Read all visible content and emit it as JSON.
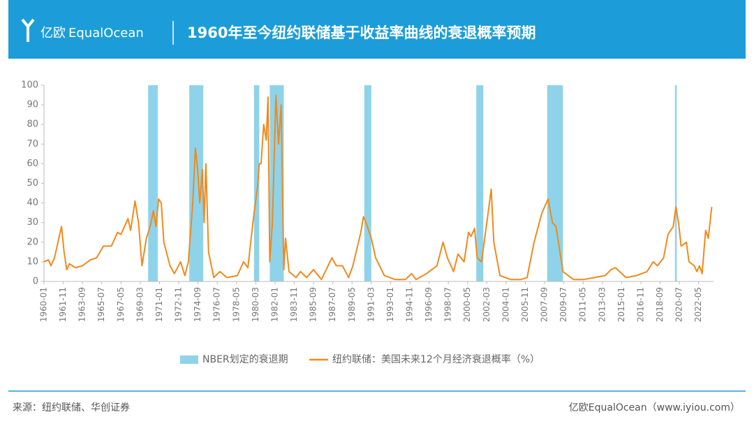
{
  "header": {
    "logo_cn": "亿欧",
    "logo_en": "EqualOcean"
  },
  "footer": {
    "source": "来源：纽约联储、华创证券",
    "credit": "亿欧EqualOcean（www.iyiou.com）"
  },
  "chart_data": {
    "type": "line",
    "title": "1960年至今纽约联储基于收益率曲线的衰退概率预期",
    "xlim": [
      "1960-01",
      "2023-10"
    ],
    "xticks": [
      "1960-01",
      "1961-11",
      "1963-09",
      "1965-07",
      "1967-05",
      "1969-03",
      "1971-01",
      "1972-11",
      "1974-09",
      "1976-07",
      "1978-05",
      "1980-03",
      "1982-01",
      "1983-11",
      "1985-09",
      "1987-07",
      "1989-05",
      "1991-03",
      "1993-01",
      "1994-11",
      "1996-09",
      "1998-07",
      "2000-05",
      "2002-03",
      "2004-01",
      "2005-11",
      "2007-09",
      "2009-07",
      "2011-05",
      "2013-03",
      "2015-01",
      "2016-11",
      "2018-09",
      "2020-07",
      "2022-05"
    ],
    "ylim": [
      0,
      100
    ],
    "yticks": [
      0,
      10,
      20,
      30,
      40,
      50,
      60,
      70,
      80,
      90,
      100
    ],
    "bands": {
      "name": "NBER划定的衰退期",
      "color": "#8fd3ea",
      "ranges": [
        [
          "1969-12",
          "1970-11"
        ],
        [
          "1973-11",
          "1975-03"
        ],
        [
          "1980-01",
          "1980-07"
        ],
        [
          "1981-07",
          "1982-11"
        ],
        [
          "1990-07",
          "1991-03"
        ],
        [
          "2001-03",
          "2001-11"
        ],
        [
          "2007-12",
          "2009-06"
        ],
        [
          "2020-02",
          "2020-04"
        ]
      ]
    },
    "x": [
      "1960-01",
      "1960-06",
      "1960-09",
      "1961-01",
      "1961-06",
      "1961-09",
      "1961-12",
      "1962-03",
      "1962-06",
      "1963-01",
      "1963-09",
      "1964-06",
      "1965-01",
      "1965-09",
      "1966-06",
      "1967-01",
      "1967-05",
      "1967-09",
      "1968-01",
      "1968-04",
      "1968-09",
      "1969-01",
      "1969-05",
      "1969-10",
      "1970-03",
      "1970-06",
      "1970-09",
      "1970-12",
      "1971-03",
      "1971-06",
      "1972-01",
      "1972-06",
      "1973-01",
      "1973-06",
      "1973-10",
      "1974-03",
      "1974-06",
      "1974-09",
      "1974-11",
      "1975-02",
      "1975-04",
      "1975-06",
      "1975-09",
      "1976-03",
      "1976-10",
      "1977-06",
      "1978-06",
      "1979-01",
      "1979-06",
      "1980-01",
      "1980-05",
      "1980-07",
      "1980-09",
      "1980-12",
      "1981-03",
      "1981-05",
      "1981-07",
      "1981-10",
      "1982-02",
      "1982-05",
      "1982-08",
      "1982-11",
      "1983-01",
      "1983-05",
      "1984-01",
      "1984-06",
      "1985-01",
      "1985-09",
      "1986-06",
      "1987-06",
      "1987-11",
      "1988-06",
      "1989-01",
      "1989-06",
      "1990-03",
      "1990-06",
      "1990-09",
      "1991-03",
      "1991-08",
      "1992-06",
      "1993-06",
      "1994-06",
      "1995-01",
      "1995-06",
      "1996-06",
      "1997-06",
      "1998-01",
      "1998-06",
      "1999-01",
      "1999-06",
      "2000-01",
      "2000-06",
      "2000-09",
      "2001-01",
      "2001-04",
      "2001-09",
      "2002-03",
      "2002-08",
      "2002-11",
      "2003-06",
      "2004-06",
      "2005-06",
      "2006-01",
      "2006-09",
      "2007-03",
      "2007-06",
      "2008-01",
      "2008-06",
      "2008-10",
      "2009-06",
      "2010-06",
      "2011-06",
      "2012-06",
      "2013-06",
      "2014-01",
      "2014-06",
      "2015-06",
      "2016-06",
      "2017-06",
      "2018-01",
      "2018-06",
      "2019-01",
      "2019-06",
      "2019-12",
      "2020-03",
      "2020-06",
      "2020-09",
      "2021-03",
      "2021-06",
      "2021-12",
      "2022-03",
      "2022-06",
      "2022-09",
      "2023-01",
      "2023-04",
      "2023-08"
    ],
    "series": [
      {
        "name": "纽约联储：美国未来12个月经济衰退概率（%）",
        "color": "#f08a1c",
        "values": [
          10,
          11,
          8,
          12,
          22,
          28,
          15,
          6,
          9,
          7,
          8,
          11,
          12,
          18,
          18,
          25,
          24,
          28,
          32,
          26,
          41,
          30,
          8,
          22,
          29,
          36,
          28,
          42,
          40,
          20,
          8,
          4,
          10,
          3,
          10,
          40,
          68,
          55,
          40,
          57,
          30,
          60,
          15,
          2,
          5,
          2,
          3,
          10,
          7,
          35,
          48,
          60,
          60,
          80,
          72,
          94,
          10,
          30,
          95,
          70,
          90,
          6,
          22,
          5,
          2,
          5,
          2,
          6,
          1,
          12,
          8,
          8,
          2,
          8,
          25,
          33,
          30,
          22,
          12,
          3,
          1,
          1,
          4,
          1,
          4,
          8,
          20,
          12,
          5,
          14,
          10,
          25,
          23,
          27,
          12,
          10,
          30,
          47,
          20,
          3,
          1,
          1,
          2,
          20,
          30,
          35,
          42,
          30,
          28,
          5,
          1,
          1,
          2,
          3,
          6,
          7,
          2,
          3,
          5,
          10,
          8,
          12,
          24,
          28,
          38,
          30,
          18,
          20,
          10,
          8,
          5,
          8,
          4,
          26,
          22,
          38
        ]
      }
    ]
  }
}
